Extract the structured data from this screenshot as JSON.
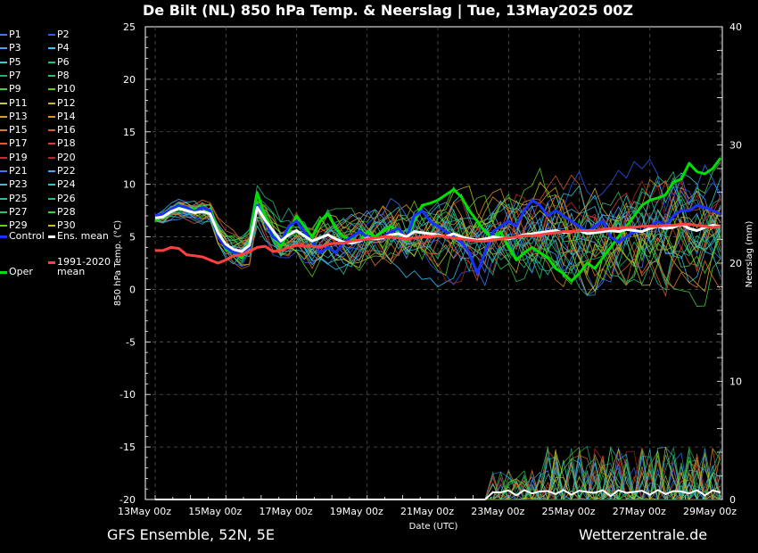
{
  "header": {
    "title": "De Bilt  (NL)  850 hPa Temp. & Neerslag | Tue, 13May2025 00Z"
  },
  "footer": {
    "left": "GFS Ensemble, 52N, 5E",
    "right": "Wetterzentrale.de"
  },
  "legend": {
    "members": [
      {
        "label": "P1",
        "color": "#3a78ff"
      },
      {
        "label": "P2",
        "color": "#2a5cff"
      },
      {
        "label": "P3",
        "color": "#4aa0ff"
      },
      {
        "label": "P4",
        "color": "#3cc0ff"
      },
      {
        "label": "P5",
        "color": "#30d0d0"
      },
      {
        "label": "P6",
        "color": "#20c090"
      },
      {
        "label": "P7",
        "color": "#20b070"
      },
      {
        "label": "P8",
        "color": "#30c060"
      },
      {
        "label": "P9",
        "color": "#40d040"
      },
      {
        "label": "P10",
        "color": "#60d020"
      },
      {
        "label": "P11",
        "color": "#c8d030"
      },
      {
        "label": "P12",
        "color": "#d0b030"
      },
      {
        "label": "P13",
        "color": "#d8a020"
      },
      {
        "label": "P14",
        "color": "#e09020"
      },
      {
        "label": "P15",
        "color": "#e07830"
      },
      {
        "label": "P16",
        "color": "#d06030"
      },
      {
        "label": "P17",
        "color": "#e05a30"
      },
      {
        "label": "P18",
        "color": "#d04040"
      },
      {
        "label": "P19",
        "color": "#c03030"
      },
      {
        "label": "P20",
        "color": "#b02828"
      },
      {
        "label": "P21",
        "color": "#3a78ff"
      },
      {
        "label": "P22",
        "color": "#4aa0ff"
      },
      {
        "label": "P23",
        "color": "#40b8e0"
      },
      {
        "label": "P24",
        "color": "#30c8c8"
      },
      {
        "label": "P25",
        "color": "#20c0a0"
      },
      {
        "label": "P26",
        "color": "#20c080"
      },
      {
        "label": "P27",
        "color": "#30c060"
      },
      {
        "label": "P28",
        "color": "#40d040"
      },
      {
        "label": "P29",
        "color": "#60d020"
      },
      {
        "label": "P30",
        "color": "#c8c020"
      }
    ],
    "control": {
      "label": "Control",
      "color": "#1a30ff"
    },
    "ens_mean": {
      "label": "Ens. mean",
      "color": "#ffffff"
    },
    "climate": {
      "label_line1": "1991-2020",
      "label_line2": "mean",
      "color": "#ff4040"
    },
    "oper": {
      "label": "Oper",
      "color": "#00e000"
    }
  },
  "chart_data": {
    "type": "line",
    "title": "De Bilt  (NL)  850 hPa Temp. & Neerslag | Tue, 13May2025 00Z",
    "xlabel": "Date (UTC)",
    "ylabel": "850 hPa Temp. (°C)",
    "y2label": "Neerslag (mm)",
    "ylim": [
      -20,
      25
    ],
    "y2lim": [
      0,
      40
    ],
    "xlim_days": [
      0,
      16
    ],
    "x_ticks": [
      "13May 00z",
      "15May 00z",
      "17May 00z",
      "19May 00z",
      "21May 00z",
      "23May 00z",
      "25May 00z",
      "27May 00z",
      "29May 00z"
    ],
    "y_ticks": [
      "25",
      "20",
      "15",
      "10",
      "5",
      "0",
      "-5",
      "-10",
      "-15",
      "-20"
    ],
    "y2_ticks": [
      "40",
      "30",
      "20",
      "10",
      "0"
    ],
    "grid": true,
    "x_step_hours": 6,
    "series": [
      {
        "name": "Oper",
        "color": "#00e000",
        "width": 3,
        "values": [
          6.5,
          7.0,
          7.5,
          7.8,
          7.5,
          7.6,
          7.3,
          7.6,
          5.5,
          3.8,
          3.5,
          3.0,
          4.5,
          9.2,
          7.0,
          5.5,
          4.0,
          5.5,
          7.0,
          6.0,
          5.0,
          6.5,
          7.2,
          5.8,
          5.0,
          4.8,
          4.6,
          5.5,
          5.0,
          5.5,
          6.0,
          5.5,
          4.6,
          6.5,
          8.0,
          8.2,
          8.5,
          9.0,
          9.5,
          8.8,
          7.5,
          6.5,
          5.5,
          4.8,
          5.5,
          4.0,
          2.8,
          3.5,
          4.0,
          3.5,
          3.0,
          2.0,
          1.5,
          0.8,
          1.5,
          2.5,
          2.0,
          3.0,
          4.0,
          5.0,
          6.0,
          7.0,
          8.0,
          8.5,
          8.7,
          9.0,
          10.2,
          10.5,
          12.0,
          11.2,
          11.0,
          11.5,
          12.5
        ]
      },
      {
        "name": "Control",
        "color": "#1a30ff",
        "width": 3,
        "values": [
          7.0,
          7.2,
          7.6,
          8.0,
          7.8,
          7.4,
          7.8,
          7.5,
          5.0,
          4.0,
          3.5,
          3.5,
          4.0,
          8.0,
          6.5,
          5.0,
          4.5,
          6.0,
          6.5,
          5.5,
          4.5,
          3.5,
          4.0,
          3.5,
          4.5,
          5.0,
          5.5,
          5.0,
          4.8,
          5.0,
          5.5,
          5.8,
          4.8,
          7.0,
          7.5,
          6.5,
          6.0,
          5.5,
          5.0,
          4.5,
          3.5,
          1.5,
          3.5,
          5.5,
          6.0,
          6.5,
          6.0,
          7.5,
          8.5,
          8.0,
          7.0,
          7.5,
          7.0,
          6.5,
          6.0,
          5.5,
          6.0,
          6.5,
          5.0,
          4.5,
          5.0,
          5.5,
          5.5,
          6.0,
          6.5,
          6.0,
          7.0,
          7.5,
          7.5,
          8.0,
          7.8,
          7.5,
          7.2
        ]
      },
      {
        "name": "Ens. mean",
        "color": "#ffffff",
        "width": 3,
        "values": [
          6.8,
          6.9,
          7.4,
          7.7,
          7.5,
          7.3,
          7.4,
          7.2,
          5.4,
          4.3,
          3.8,
          3.6,
          4.2,
          7.8,
          6.6,
          5.6,
          4.6,
          5.2,
          5.6,
          5.1,
          4.6,
          4.9,
          5.2,
          4.8,
          4.5,
          4.4,
          4.6,
          4.9,
          4.8,
          4.9,
          5.2,
          5.3,
          5.0,
          5.5,
          5.4,
          5.3,
          5.2,
          5.0,
          5.3,
          5.0,
          4.8,
          4.7,
          4.8,
          5.0,
          4.9,
          4.8,
          5.0,
          5.2,
          5.3,
          5.4,
          5.5,
          5.6,
          5.4,
          5.5,
          5.6,
          5.3,
          5.4,
          5.5,
          5.6,
          5.5,
          5.7,
          5.6,
          5.5,
          5.8,
          6.0,
          5.8,
          5.9,
          6.2,
          5.8,
          5.6,
          5.9,
          6.1,
          6.0
        ]
      },
      {
        "name": "1991-2020 mean",
        "color": "#ff4040",
        "width": 3,
        "values": [
          3.7,
          3.7,
          4.0,
          3.9,
          3.3,
          3.2,
          3.1,
          2.8,
          2.5,
          2.8,
          3.2,
          3.3,
          3.6,
          4.0,
          4.1,
          3.6,
          3.7,
          4.0,
          4.2,
          4.1,
          4.1,
          4.0,
          4.3,
          4.4,
          4.4,
          4.6,
          4.7,
          4.8,
          4.9,
          5.0,
          5.0,
          4.9,
          4.8,
          4.9,
          5.0,
          5.0,
          5.1,
          5.0,
          4.9,
          4.8,
          4.7,
          4.6,
          4.6,
          4.7,
          4.8,
          4.9,
          5.0,
          5.1,
          5.1,
          5.2,
          5.3,
          5.4,
          5.5,
          5.5,
          5.6,
          5.6,
          5.6,
          5.7,
          5.8,
          5.8,
          5.9,
          5.9,
          6.0,
          6.0,
          6.0,
          6.1,
          6.1,
          6.2,
          6.2,
          6.1,
          6.0,
          5.9,
          6.0
        ]
      }
    ]
  }
}
